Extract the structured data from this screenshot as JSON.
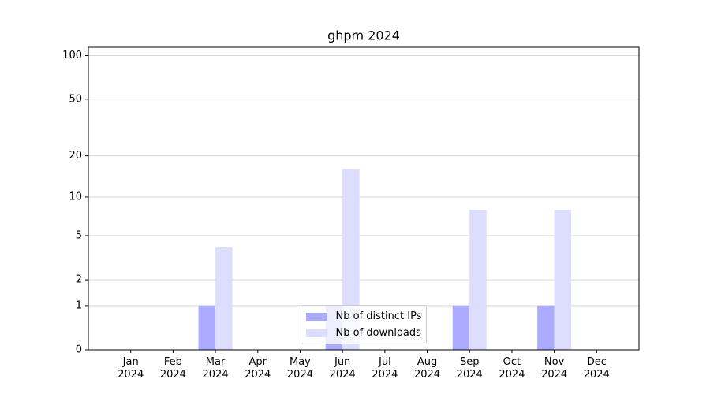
{
  "chart_data": {
    "type": "bar",
    "title": "ghpm 2024",
    "categories": [
      "Jan\n2024",
      "Feb\n2024",
      "Mar\n2024",
      "Apr\n2024",
      "May\n2024",
      "Jun\n2024",
      "Jul\n2024",
      "Aug\n2024",
      "Sep\n2024",
      "Oct\n2024",
      "Nov\n2024",
      "Dec\n2024"
    ],
    "series": [
      {
        "name": "Nb of distinct IPs",
        "color": "#aaaaff",
        "values": [
          0,
          0,
          1,
          0,
          0,
          1,
          0,
          0,
          1,
          0,
          1,
          0
        ]
      },
      {
        "name": "Nb of downloads",
        "color": "#ddddff",
        "values": [
          0,
          0,
          4,
          0,
          0,
          16,
          0,
          0,
          8,
          0,
          8,
          0
        ]
      }
    ],
    "yscale": "log1p",
    "ylim": [
      0,
      114
    ],
    "yticks": [
      0,
      1,
      2,
      5,
      10,
      20,
      50,
      100
    ],
    "grid": true,
    "legend": "lower center"
  }
}
